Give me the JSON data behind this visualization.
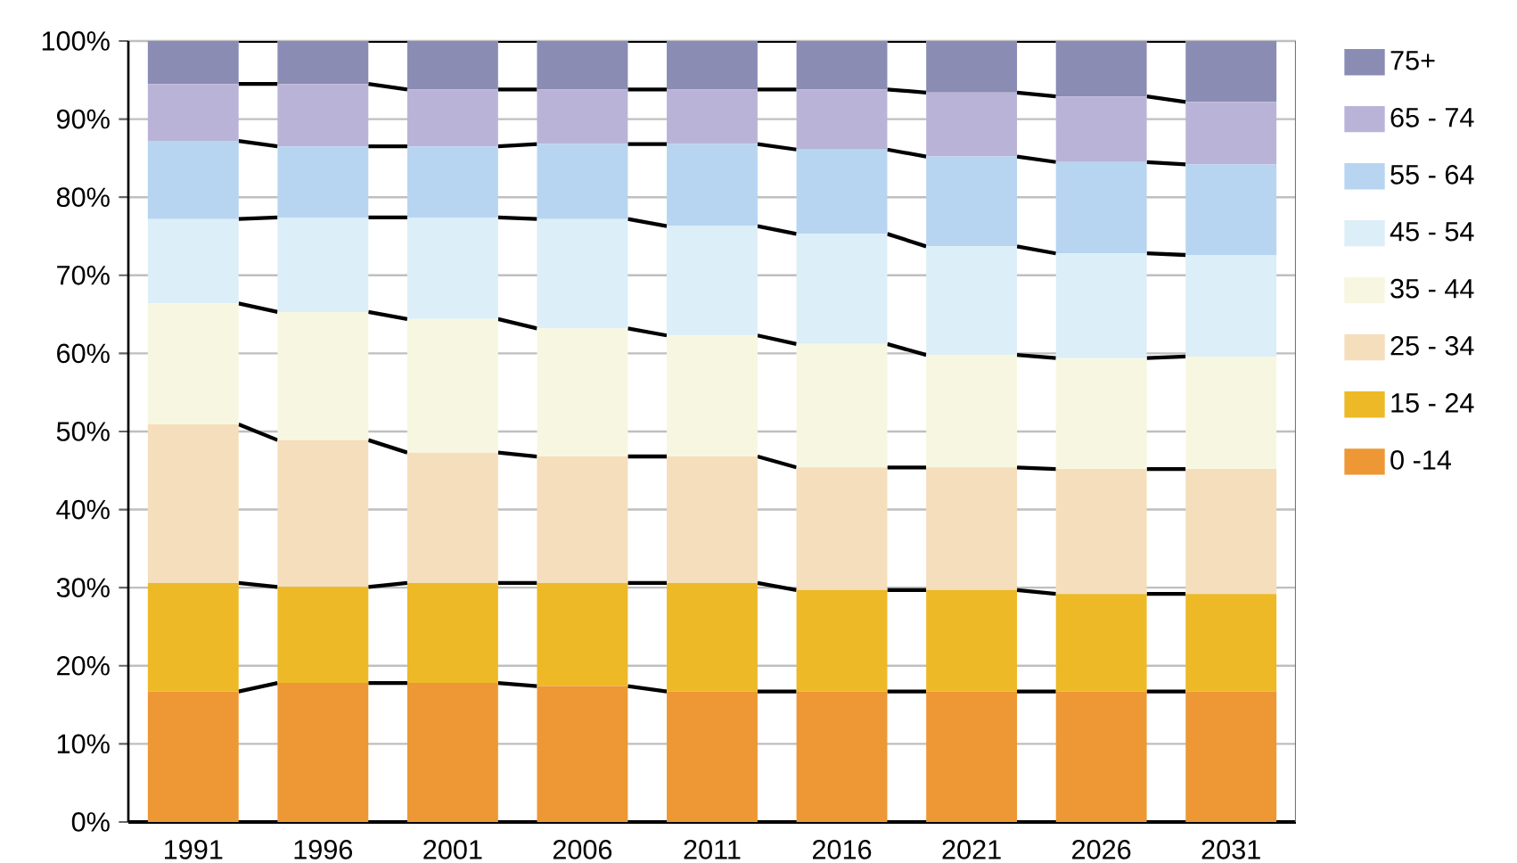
{
  "chart_data": {
    "type": "bar",
    "stacked": true,
    "categories": [
      "1991",
      "1996",
      "2001",
      "2006",
      "2011",
      "2016",
      "2021",
      "2026",
      "2031"
    ],
    "series": [
      {
        "name": "0 -14",
        "color": "#ed9834",
        "values": [
          16.7,
          17.8,
          17.8,
          17.4,
          16.7,
          16.7,
          16.7,
          16.7,
          16.7
        ]
      },
      {
        "name": "15 - 24",
        "color": "#edb926",
        "values": [
          13.9,
          12.3,
          12.8,
          13.2,
          13.9,
          13.0,
          13.0,
          12.5,
          12.5
        ]
      },
      {
        "name": "25 - 34",
        "color": "#f5debb",
        "values": [
          20.3,
          18.8,
          16.7,
          16.2,
          16.2,
          15.7,
          15.7,
          16.0,
          16.0
        ]
      },
      {
        "name": "35 - 44",
        "color": "#f7f7e1",
        "values": [
          15.5,
          16.4,
          17.1,
          16.4,
          15.5,
          15.8,
          14.4,
          14.2,
          14.4
        ]
      },
      {
        "name": "45 - 54",
        "color": "#dceef7",
        "values": [
          10.8,
          12.1,
          13.0,
          14.0,
          14.0,
          14.1,
          13.9,
          13.4,
          13.0
        ]
      },
      {
        "name": "55 - 64",
        "color": "#b7d5f0",
        "values": [
          10.0,
          9.1,
          9.1,
          9.6,
          10.5,
          10.8,
          11.5,
          11.7,
          11.6
        ]
      },
      {
        "name": "65 - 74",
        "color": "#b9b4d7",
        "values": [
          7.3,
          8.0,
          7.3,
          7.0,
          7.0,
          7.7,
          8.2,
          8.4,
          8.0
        ]
      },
      {
        "name": "75+",
        "color": "#8a8cb3",
        "values": [
          5.5,
          5.5,
          6.2,
          6.2,
          6.2,
          6.2,
          6.6,
          7.1,
          7.8
        ]
      }
    ],
    "ylim": [
      0,
      100
    ],
    "yticks": [
      {
        "value": 0,
        "label": "0%"
      },
      {
        "value": 10,
        "label": "10%"
      },
      {
        "value": 20,
        "label": "20%"
      },
      {
        "value": 30,
        "label": "30%"
      },
      {
        "value": 40,
        "label": "40%"
      },
      {
        "value": 50,
        "label": "50%"
      },
      {
        "value": 60,
        "label": "60%"
      },
      {
        "value": 70,
        "label": "70%"
      },
      {
        "value": 80,
        "label": "80%"
      },
      {
        "value": 90,
        "label": "90%"
      },
      {
        "value": 100,
        "label": "100%"
      }
    ],
    "grid": "y",
    "legend": "right"
  }
}
